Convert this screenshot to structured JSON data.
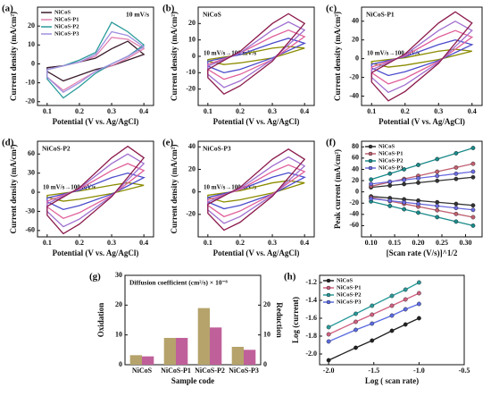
{
  "chart_data": [
    {
      "type": "line",
      "label": "(a)",
      "annotation": "10 mV/s",
      "closed": true,
      "legend": "upper left",
      "xlabel": "Potential (V vs. Ag/AgCl)",
      "ylabel": "Current density (mA/cm²)",
      "x": [
        0.1,
        0.15,
        0.2,
        0.25,
        0.3,
        0.35,
        0.4,
        0.35,
        0.3,
        0.25,
        0.2,
        0.15,
        0.1
      ],
      "xlim": [
        0.07,
        0.43
      ],
      "xticks": [
        0.1,
        0.2,
        0.3,
        0.4
      ],
      "ylim": [
        -22,
        30
      ],
      "yticks": [
        -20,
        -10,
        0,
        10,
        20
      ],
      "series": [
        {
          "name": "NiCoS",
          "color": "#3a1a2a",
          "values": [
            -2,
            -1,
            1,
            3,
            8,
            12,
            5,
            2,
            -1,
            -3,
            -6,
            -9,
            -4
          ]
        },
        {
          "name": "NiCoS-P1",
          "color": "#e080b0",
          "values": [
            -3,
            -1,
            1,
            4,
            14,
            13,
            8,
            3,
            -1,
            -4,
            -9,
            -14,
            -7
          ]
        },
        {
          "name": "NiCoS-P2",
          "color": "#2a9a9a",
          "values": [
            -3,
            -1,
            2,
            6,
            22,
            17,
            10,
            4,
            0,
            -5,
            -12,
            -18,
            -8
          ]
        },
        {
          "name": "NiCoS-P3",
          "color": "#a090e0",
          "values": [
            -3,
            -1,
            1,
            5,
            17,
            15,
            9,
            4,
            0,
            -4,
            -10,
            -15,
            -7
          ]
        }
      ]
    },
    {
      "type": "line",
      "label": "(b)",
      "title": "NiCoS",
      "annotation": "10 mV/s→100 mV/s",
      "closed": true,
      "xlabel": "Potential (V vs. Ag/AgCl)",
      "ylabel": "Current density (mA/cm²)",
      "x": [
        0.1,
        0.2,
        0.3,
        0.35,
        0.4,
        0.3,
        0.2,
        0.15,
        0.1
      ],
      "xlim": [
        0.07,
        0.43
      ],
      "xticks": [
        0.1,
        0.2,
        0.3,
        0.4
      ],
      "ylim": [
        -30,
        30
      ],
      "yticks": [
        -20,
        -10,
        0,
        10,
        20
      ],
      "series": [
        {
          "color": "#8b8b00",
          "values": [
            -2,
            1,
            5,
            6,
            5,
            -1,
            -4,
            -5,
            -3
          ]
        },
        {
          "color": "#4b4bcc",
          "values": [
            -3,
            1,
            8,
            11,
            8,
            -1,
            -8,
            -10,
            -6
          ]
        },
        {
          "color": "#e0609a",
          "values": [
            -5,
            2,
            12,
            16,
            12,
            -2,
            -11,
            -14,
            -8
          ]
        },
        {
          "color": "#a070d0",
          "values": [
            -6,
            2,
            16,
            21,
            16,
            -2,
            -15,
            -19,
            -11
          ]
        },
        {
          "color": "#8b1a4b",
          "values": [
            -8,
            3,
            20,
            26,
            20,
            -3,
            -18,
            -23,
            -13
          ]
        }
      ]
    },
    {
      "type": "line",
      "label": "(c)",
      "title": "NiCoS-P1",
      "annotation": "10 mV/s→100 mV/s",
      "closed": true,
      "xlabel": "Potential (V vs. Ag/AgCl)",
      "ylabel": "Current density (mA/cm²)",
      "x": [
        0.1,
        0.2,
        0.3,
        0.35,
        0.4,
        0.3,
        0.2,
        0.15,
        0.1
      ],
      "xlim": [
        0.07,
        0.43
      ],
      "xticks": [
        0.1,
        0.2,
        0.3,
        0.4
      ],
      "ylim": [
        -50,
        55
      ],
      "yticks": [
        -40,
        -20,
        0,
        20,
        40
      ],
      "series": [
        {
          "color": "#8b8b00",
          "values": [
            -3,
            1,
            8,
            10,
            8,
            -1,
            -7,
            -9,
            -5
          ]
        },
        {
          "color": "#4b4bcc",
          "values": [
            -6,
            2,
            15,
            20,
            15,
            -2,
            -14,
            -18,
            -10
          ]
        },
        {
          "color": "#e0609a",
          "values": [
            -9,
            3,
            23,
            30,
            23,
            -3,
            -21,
            -27,
            -15
          ]
        },
        {
          "color": "#a070d0",
          "values": [
            -12,
            4,
            30,
            40,
            30,
            -4,
            -28,
            -36,
            -20
          ]
        },
        {
          "color": "#8b1a4b",
          "values": [
            -15,
            5,
            38,
            50,
            38,
            -5,
            -35,
            -45,
            -25
          ]
        }
      ]
    },
    {
      "type": "line",
      "label": "(d)",
      "title": "NiCoS-P2",
      "annotation": "10 mV/s→100 mV/s",
      "closed": true,
      "xlabel": "Potential (V vs. Ag/AgCl)",
      "ylabel": "Current density (mA/cm²)",
      "x": [
        0.1,
        0.2,
        0.3,
        0.35,
        0.4,
        0.3,
        0.2,
        0.15,
        0.1
      ],
      "xlim": [
        0.07,
        0.43
      ],
      "xticks": [
        0.1,
        0.2,
        0.3,
        0.4
      ],
      "ylim": [
        -70,
        80
      ],
      "yticks": [
        -60,
        -30,
        0,
        30,
        60
      ],
      "series": [
        {
          "color": "#8b8b00",
          "values": [
            -5,
            2,
            11,
            15,
            11,
            -2,
            -11,
            -14,
            -8
          ]
        },
        {
          "color": "#4b4bcc",
          "values": [
            -9,
            3,
            23,
            30,
            23,
            -3,
            -21,
            -27,
            -15
          ]
        },
        {
          "color": "#e0609a",
          "values": [
            -14,
            5,
            34,
            45,
            34,
            -5,
            -32,
            -41,
            -23
          ]
        },
        {
          "color": "#a070d0",
          "values": [
            -18,
            6,
            45,
            60,
            45,
            -6,
            -42,
            -54,
            -30
          ]
        },
        {
          "color": "#8b1a4b",
          "values": [
            -22,
            7,
            54,
            72,
            54,
            -7,
            -50,
            -65,
            -36
          ]
        }
      ]
    },
    {
      "type": "line",
      "label": "(e)",
      "title": "NiCoS-P3",
      "annotation": "10 mV/s→100 mV/s",
      "closed": true,
      "xlabel": "Potential (V vs. Ag/AgCl)",
      "ylabel": "Current density (mA/cm²)",
      "x": [
        0.1,
        0.2,
        0.3,
        0.35,
        0.4,
        0.3,
        0.2,
        0.15,
        0.1
      ],
      "xlim": [
        0.07,
        0.43
      ],
      "xticks": [
        0.1,
        0.2,
        0.3,
        0.4
      ],
      "ylim": [
        -40,
        45
      ],
      "yticks": [
        -20,
        0,
        20,
        40
      ],
      "series": [
        {
          "color": "#8b8b00",
          "values": [
            -3,
            1,
            8,
            10,
            8,
            -1,
            -7,
            -9,
            -5
          ]
        },
        {
          "color": "#4b4bcc",
          "values": [
            -5,
            2,
            13,
            17,
            13,
            -2,
            -12,
            -15,
            -9
          ]
        },
        {
          "color": "#e0609a",
          "values": [
            -7,
            2,
            18,
            24,
            18,
            -2,
            -17,
            -22,
            -12
          ]
        },
        {
          "color": "#a070d0",
          "values": [
            -9,
            3,
            23,
            31,
            23,
            -3,
            -22,
            -28,
            -16
          ]
        },
        {
          "color": "#8b1a4b",
          "values": [
            -11,
            4,
            29,
            38,
            29,
            -4,
            -27,
            -34,
            -19
          ]
        }
      ]
    },
    {
      "type": "line",
      "label": "(f)",
      "markers": true,
      "legend": "upper left",
      "xlabel": "[Scan rate (V/s)]^1/2",
      "ylabel": "Peak current (mA/cm²)",
      "x": [
        0.1,
        0.14,
        0.17,
        0.2,
        0.24,
        0.28,
        0.316
      ],
      "xlim": [
        0.08,
        0.335
      ],
      "xticks": [
        {
          "value": 0.1,
          "label": "0.10"
        },
        0.15,
        {
          "value": 0.2,
          "label": "0.20"
        },
        0.25,
        {
          "value": 0.3,
          "label": "0.30"
        }
      ],
      "ylim": [
        -80,
        90
      ],
      "yticks": [
        -60,
        -40,
        -20,
        0,
        20,
        40,
        60,
        80
      ],
      "series": [
        {
          "name": "NiCoS",
          "color": "#333333",
          "values": [
            8,
            11.3,
            13.8,
            16.3,
            19.7,
            23,
            26
          ],
          "values_neg": [
            -8,
            -11,
            -13.2,
            -15.4,
            -18.4,
            -21.3,
            -24
          ]
        },
        {
          "name": "NiCoS-P1",
          "color": "#c06070",
          "values": [
            10,
            17.4,
            23,
            28.5,
            35.9,
            43.3,
            50
          ],
          "values_neg": [
            -10,
            -16.5,
            -21.3,
            -26.2,
            -32.7,
            -39.2,
            -45
          ]
        },
        {
          "name": "NiCoS-P2",
          "color": "#1a8a8a",
          "values": [
            22,
            32.4,
            40.1,
            47.9,
            58.3,
            68.6,
            78
          ],
          "values_neg": [
            -17,
            -25,
            -30.9,
            -36.9,
            -44.9,
            -52.8,
            -60
          ]
        },
        {
          "name": "NiCoS-P3",
          "color": "#6a6ae0",
          "values": [
            14,
            18.1,
            21.1,
            24.2,
            28.3,
            32.3,
            36
          ],
          "values_neg": [
            -12,
            -15.7,
            -18.5,
            -21.3,
            -25,
            -28.7,
            -32
          ]
        }
      ]
    },
    {
      "type": "bar",
      "label": "(g)",
      "title": "Diffusion coefficient (cm²/s) × 10⁻⁸",
      "xlabel": "Sample code",
      "ylabel": "Oxidation",
      "y2label": "Reduction",
      "categories": [
        "NiCoS",
        "NiCoS-P1",
        "NiCoS-P2",
        "NiCoS-P3"
      ],
      "ylim": [
        0,
        30
      ],
      "yticks": [
        0,
        10,
        20,
        30
      ],
      "y2lim": [
        0,
        30
      ],
      "y2ticks": [
        0,
        10,
        20
      ],
      "series": [
        {
          "color": "#b5a36b",
          "values": [
            3.2,
            9,
            19,
            6
          ]
        },
        {
          "color": "#c0609a",
          "axis": "y2",
          "values": [
            2.8,
            9,
            12.5,
            5
          ]
        }
      ]
    },
    {
      "type": "line",
      "label": "(h)",
      "markers": true,
      "legend": "upper left",
      "xlabel": "Log ( scan rate)",
      "ylabel": "Log (current)",
      "x": [
        -2.0,
        -1.7,
        -1.52,
        -1.3,
        -1.15,
        -1.0
      ],
      "xlim": [
        -2.1,
        -0.5
      ],
      "xticks": [
        {
          "value": -2.0,
          "label": "-2.0"
        },
        -1.5,
        {
          "value": -1.0,
          "label": "-1.0"
        },
        -0.5
      ],
      "ylim": [
        -2.12,
        -1.12
      ],
      "yticks": [
        {
          "value": -2.0,
          "label": "-2.0"
        },
        -1.8,
        -1.6,
        -1.4,
        -1.2
      ],
      "series": [
        {
          "name": "NiCoS",
          "color": "#222222",
          "values": [
            -2.07,
            -1.93,
            -1.85,
            -1.74,
            -1.67,
            -1.6
          ]
        },
        {
          "name": "NiCoS-P1",
          "color": "#d06080",
          "values": [
            -1.78,
            -1.64,
            -1.56,
            -1.46,
            -1.39,
            -1.32
          ]
        },
        {
          "name": "NiCoS-P2",
          "color": "#2a9a9a",
          "values": [
            -1.7,
            -1.55,
            -1.46,
            -1.35,
            -1.28,
            -1.2
          ]
        },
        {
          "name": "NiCoS-P3",
          "color": "#5a6ae0",
          "values": [
            -1.86,
            -1.73,
            -1.66,
            -1.57,
            -1.5,
            -1.44
          ]
        }
      ]
    }
  ]
}
